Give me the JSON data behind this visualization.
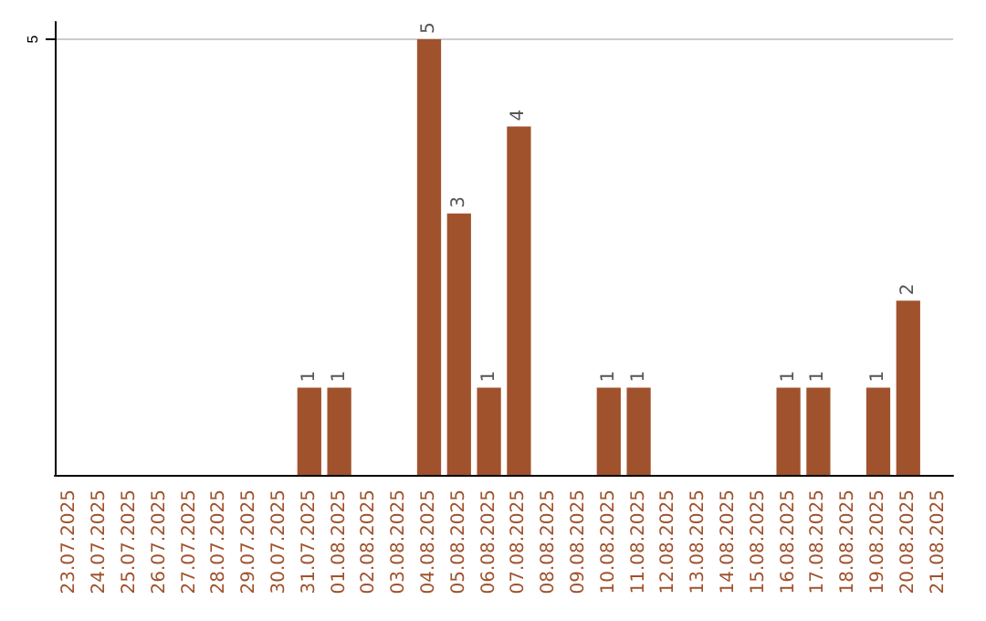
{
  "chart_data": {
    "type": "bar",
    "categories": [
      "23.07.2025",
      "24.07.2025",
      "25.07.2025",
      "26.07.2025",
      "27.07.2025",
      "28.07.2025",
      "29.07.2025",
      "30.07.2025",
      "31.07.2025",
      "01.08.2025",
      "02.08.2025",
      "03.08.2025",
      "04.08.2025",
      "05.08.2025",
      "06.08.2025",
      "07.08.2025",
      "08.08.2025",
      "09.08.2025",
      "10.08.2025",
      "11.08.2025",
      "12.08.2025",
      "13.08.2025",
      "14.08.2025",
      "15.08.2025",
      "16.08.2025",
      "17.08.2025",
      "18.08.2025",
      "19.08.2025",
      "20.08.2025",
      "21.08.2025"
    ],
    "values": [
      0,
      0,
      0,
      0,
      0,
      0,
      0,
      0,
      1,
      1,
      0,
      0,
      5,
      3,
      1,
      4,
      0,
      0,
      1,
      1,
      0,
      0,
      0,
      0,
      1,
      1,
      0,
      1,
      2,
      0
    ],
    "value_labels": [
      null,
      null,
      null,
      null,
      null,
      null,
      null,
      null,
      "1",
      "1",
      null,
      null,
      "5",
      "3",
      "1",
      "4",
      null,
      null,
      "1",
      "1",
      null,
      null,
      null,
      null,
      "1",
      "1",
      null,
      "1",
      "2",
      null
    ],
    "color": "#a0522d",
    "ylim": [
      0,
      5.2
    ],
    "yticks": [
      5
    ],
    "grid": "y"
  }
}
